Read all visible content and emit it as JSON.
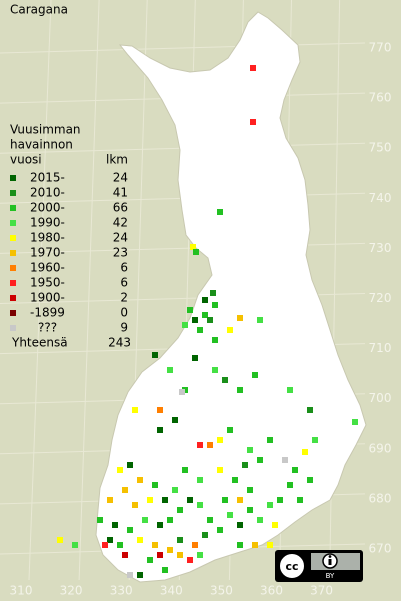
{
  "title": "Caragana",
  "legend": {
    "header": [
      "Vuusimman",
      "havainnon",
      "vuosi"
    ],
    "count_header": "lkm",
    "rows": [
      {
        "label": "2015-",
        "count": 24,
        "color": "#006400"
      },
      {
        "label": "2010-",
        "count": 41,
        "color": "#1a8f1a"
      },
      {
        "label": "2000-",
        "count": 66,
        "color": "#22c022"
      },
      {
        "label": "1990-",
        "count": 42,
        "color": "#44e044"
      },
      {
        "label": "1980-",
        "count": 24,
        "color": "#ffff00"
      },
      {
        "label": "1970-",
        "count": 23,
        "color": "#f5c000"
      },
      {
        "label": "1960-",
        "count": 6,
        "color": "#ff7f00"
      },
      {
        "label": "1950-",
        "count": 6,
        "color": "#ff2020"
      },
      {
        "label": "1900-",
        "count": 2,
        "color": "#cc0000"
      },
      {
        "label": "-1899",
        "count": 0,
        "color": "#7a0000"
      },
      {
        "label": "???",
        "count": 9,
        "color": "#c8c8c8"
      }
    ],
    "total_label": "Yhteensä",
    "total": 243
  },
  "grid": {
    "y_labels": [
      770,
      760,
      750,
      740,
      730,
      720,
      710,
      700,
      690,
      680,
      670
    ],
    "x_labels": [
      310,
      320,
      330,
      340,
      350,
      360,
      370
    ]
  },
  "license": "BY"
}
